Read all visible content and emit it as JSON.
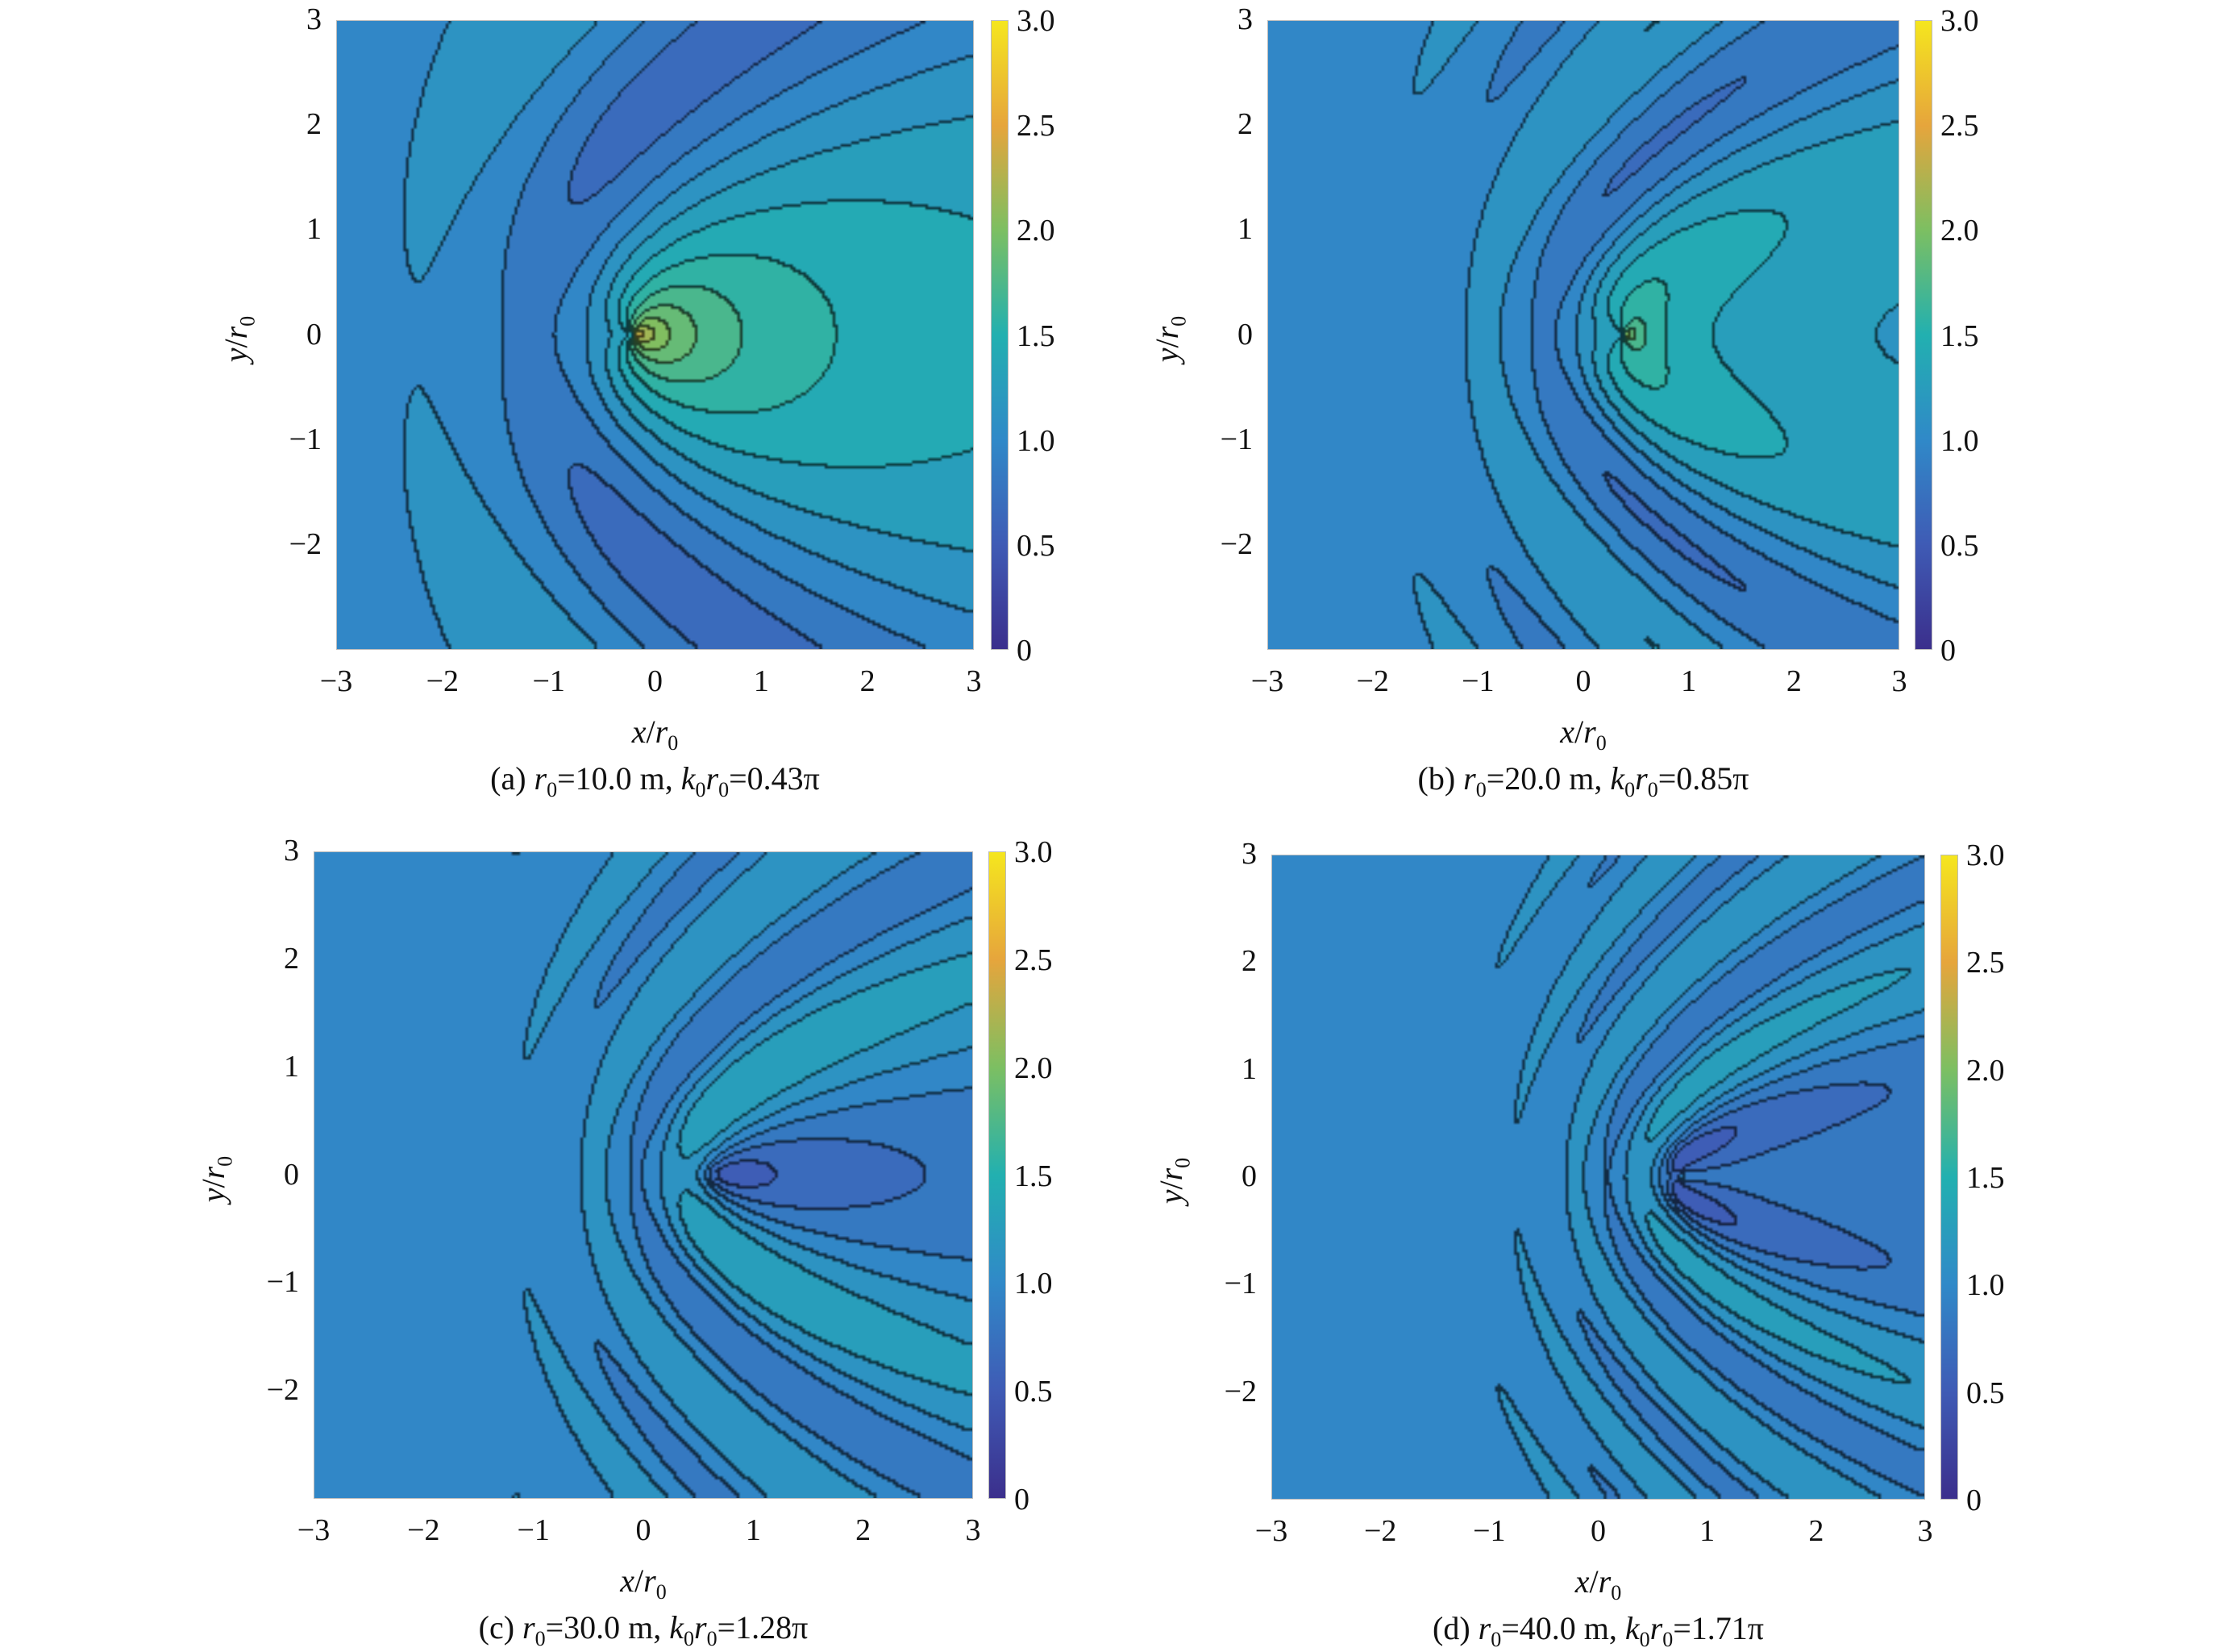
{
  "chart_data": [
    {
      "type": "heatmap",
      "subtype": "filled-contour",
      "panel": "(a)",
      "caption": [
        {
          "t": "(a) "
        },
        {
          "t": "r",
          "i": true
        },
        {
          "sub": "0"
        },
        {
          "t": "=10.0 m, "
        },
        {
          "t": "k",
          "i": true
        },
        {
          "sub": "0"
        },
        {
          "t": "r",
          "i": true
        },
        {
          "sub": "0"
        },
        {
          "t": "=0.43π"
        }
      ],
      "r0_m": 10.0,
      "k0r0_over_pi": 0.43,
      "focus_x": -0.2,
      "xlabel": [
        {
          "t": "x",
          "i": true
        },
        {
          "t": "/"
        },
        {
          "t": "r",
          "i": true
        },
        {
          "sub": "0"
        }
      ],
      "ylabel": [
        {
          "t": "y",
          "i": true
        },
        {
          "t": "/"
        },
        {
          "t": "r",
          "i": true
        },
        {
          "sub": "0"
        }
      ],
      "xlim": [
        -3,
        3
      ],
      "ylim": [
        -3,
        3
      ],
      "xticks": [
        "−3",
        "−2",
        "−1",
        "0",
        "1",
        "2",
        "3"
      ],
      "yticks": [
        "3",
        "2",
        "1",
        "0",
        "−1",
        "−2"
      ],
      "colorbar": {
        "range": [
          0,
          3.0
        ],
        "ticks": [
          "3.0",
          "2.5",
          "2.0",
          "1.5",
          "1.0",
          "0.5",
          "0"
        ]
      }
    },
    {
      "type": "heatmap",
      "subtype": "filled-contour",
      "panel": "(b)",
      "caption": [
        {
          "t": "(b) "
        },
        {
          "t": "r",
          "i": true
        },
        {
          "sub": "0"
        },
        {
          "t": "=20.0 m, "
        },
        {
          "t": "k",
          "i": true
        },
        {
          "sub": "0"
        },
        {
          "t": "r",
          "i": true
        },
        {
          "sub": "0"
        },
        {
          "t": "=0.85π"
        }
      ],
      "r0_m": 20.0,
      "k0r0_over_pi": 0.85,
      "focus_x": 0.4,
      "xlabel": [
        {
          "t": "x",
          "i": true
        },
        {
          "t": "/"
        },
        {
          "t": "r",
          "i": true
        },
        {
          "sub": "0"
        }
      ],
      "ylabel": [
        {
          "t": "y",
          "i": true
        },
        {
          "t": "/"
        },
        {
          "t": "r",
          "i": true
        },
        {
          "sub": "0"
        }
      ],
      "xlim": [
        -3,
        3
      ],
      "ylim": [
        -3,
        3
      ],
      "xticks": [
        "−3",
        "−2",
        "−1",
        "0",
        "1",
        "2",
        "3"
      ],
      "yticks": [
        "3",
        "2",
        "1",
        "0",
        "−1",
        "−2"
      ],
      "colorbar": {
        "range": [
          0,
          3.0
        ],
        "ticks": [
          "3.0",
          "2.5",
          "2.0",
          "1.5",
          "1.0",
          "0.5",
          "0"
        ]
      }
    },
    {
      "type": "heatmap",
      "subtype": "filled-contour",
      "panel": "(c)",
      "caption": [
        {
          "t": "(c) "
        },
        {
          "t": "r",
          "i": true
        },
        {
          "sub": "0"
        },
        {
          "t": "=30.0 m, "
        },
        {
          "t": "k",
          "i": true
        },
        {
          "sub": "0"
        },
        {
          "t": "r",
          "i": true
        },
        {
          "sub": "0"
        },
        {
          "t": "=1.28π"
        }
      ],
      "r0_m": 30.0,
      "k0r0_over_pi": 1.28,
      "focus_x": 0.65,
      "xlabel": [
        {
          "t": "x",
          "i": true
        },
        {
          "t": "/"
        },
        {
          "t": "r",
          "i": true
        },
        {
          "sub": "0"
        }
      ],
      "ylabel": [
        {
          "t": "y",
          "i": true
        },
        {
          "t": "/"
        },
        {
          "t": "r",
          "i": true
        },
        {
          "sub": "0"
        }
      ],
      "xlim": [
        -3,
        3
      ],
      "ylim": [
        -3,
        3
      ],
      "xticks": [
        "−3",
        "−2",
        "−1",
        "0",
        "1",
        "2",
        "3"
      ],
      "yticks": [
        "3",
        "2",
        "1",
        "0",
        "−1",
        "−2"
      ],
      "colorbar": {
        "range": [
          0,
          3.0
        ],
        "ticks": [
          "3.0",
          "2.5",
          "2.0",
          "1.5",
          "1.0",
          "0.5",
          "0"
        ]
      }
    },
    {
      "type": "heatmap",
      "subtype": "filled-contour",
      "panel": "(d)",
      "caption": [
        {
          "t": "(d) "
        },
        {
          "t": "r",
          "i": true
        },
        {
          "sub": "0"
        },
        {
          "t": "=40.0 m, "
        },
        {
          "t": "k",
          "i": true
        },
        {
          "sub": "0"
        },
        {
          "t": "r",
          "i": true
        },
        {
          "sub": "0"
        },
        {
          "t": "=1.71π"
        }
      ],
      "r0_m": 40.0,
      "k0r0_over_pi": 1.71,
      "focus_x": 0.75,
      "xlabel": [
        {
          "t": "x",
          "i": true
        },
        {
          "t": "/"
        },
        {
          "t": "r",
          "i": true
        },
        {
          "sub": "0"
        }
      ],
      "ylabel": [
        {
          "t": "y",
          "i": true
        },
        {
          "t": "/"
        },
        {
          "t": "r",
          "i": true
        },
        {
          "sub": "0"
        }
      ],
      "xlim": [
        -3,
        3
      ],
      "ylim": [
        -3,
        3
      ],
      "xticks": [
        "−3",
        "−2",
        "−1",
        "0",
        "1",
        "2",
        "3"
      ],
      "yticks": [
        "3",
        "2",
        "1",
        "0",
        "−1",
        "−2"
      ],
      "colorbar": {
        "range": [
          0,
          3.0
        ],
        "ticks": [
          "3.0",
          "2.5",
          "2.0",
          "1.5",
          "1.0",
          "0.5",
          "0"
        ]
      }
    }
  ],
  "colormap": [
    "#3b2f8c",
    "#3f5bb5",
    "#3089c8",
    "#22b0b0",
    "#7cbf62",
    "#e6a53c",
    "#f5e61e"
  ]
}
